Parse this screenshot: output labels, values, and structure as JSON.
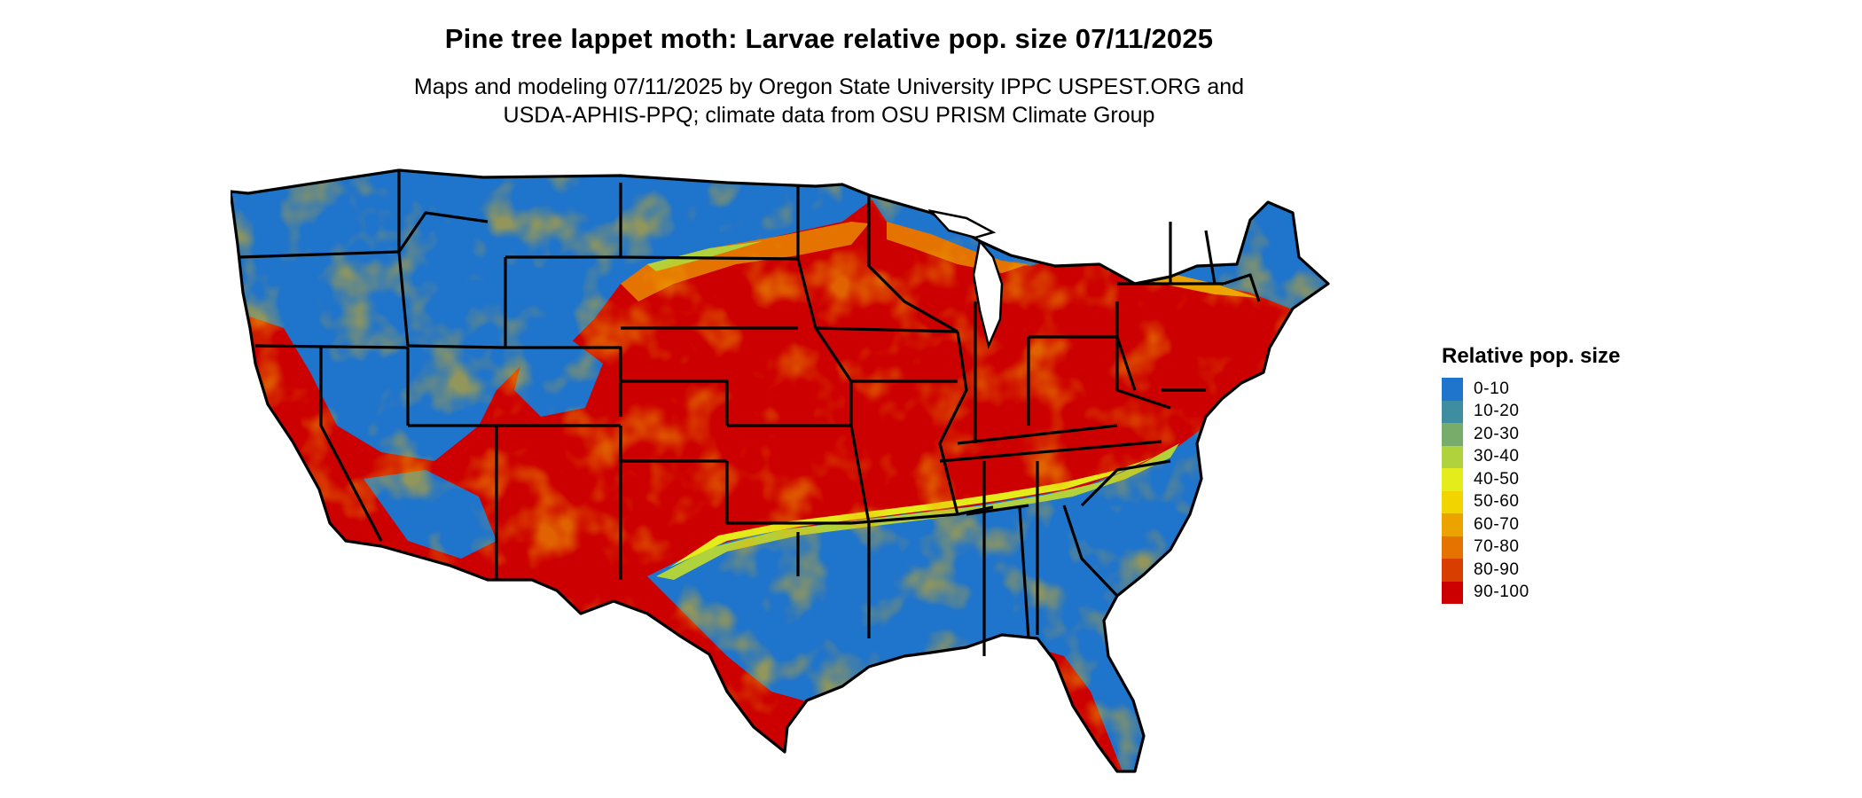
{
  "map": {
    "title": "Pine tree lappet moth: Larvae relative pop. size 07/11/2025",
    "subtitle_line1": "Maps and modeling 07/11/2025 by Oregon State University IPPC USPEST.ORG and",
    "subtitle_line2": "USDA-APHIS-PPQ; climate data from OSU PRISM Climate Group",
    "region": "Contiguous United States",
    "background_color": "#ffffff",
    "border_color": "#000000"
  },
  "legend": {
    "title": "Relative pop. size",
    "placement": "right",
    "items": [
      {
        "label": "0-10",
        "color": "#1f74cc"
      },
      {
        "label": "10-20",
        "color": "#3f8da0"
      },
      {
        "label": "20-30",
        "color": "#78ac6a"
      },
      {
        "label": "30-40",
        "color": "#b0d23c"
      },
      {
        "label": "40-50",
        "color": "#e4ec1c"
      },
      {
        "label": "50-60",
        "color": "#f2d400"
      },
      {
        "label": "60-70",
        "color": "#eca300"
      },
      {
        "label": "70-80",
        "color": "#e47300"
      },
      {
        "label": "80-90",
        "color": "#d83e00"
      },
      {
        "label": "90-100",
        "color": "#cc0000"
      }
    ]
  }
}
